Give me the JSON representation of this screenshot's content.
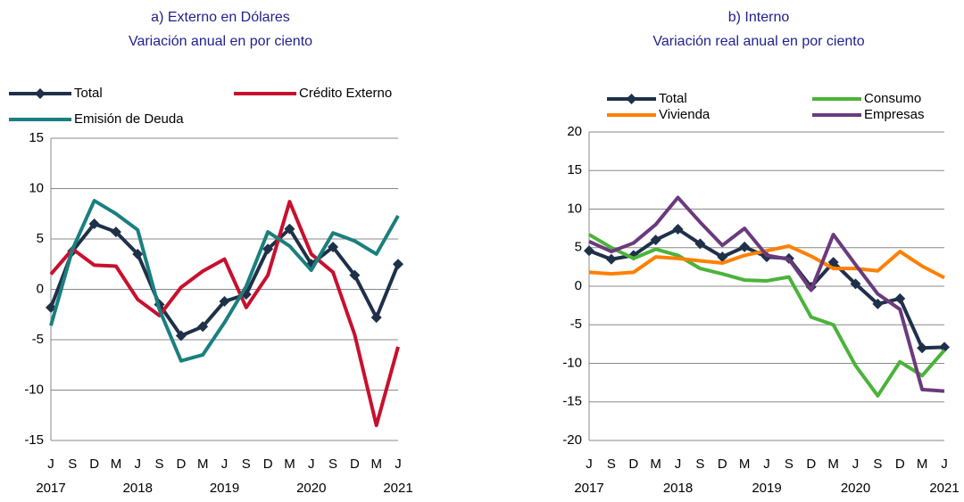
{
  "chart_data": [
    {
      "type": "line",
      "title": "a) Externo en Dólares",
      "subtitle": "Variación anual en por ciento",
      "categories": [
        "J",
        "S",
        "D",
        "M",
        "J",
        "S",
        "D",
        "M",
        "J",
        "S",
        "D",
        "M",
        "J",
        "S",
        "D",
        "M",
        "J"
      ],
      "years": [
        "2017",
        null,
        null,
        null,
        "2018",
        null,
        null,
        null,
        "2019",
        null,
        null,
        null,
        "2020",
        null,
        null,
        null,
        "2021"
      ],
      "ylim": [
        -15,
        15
      ],
      "yticks": [
        -15,
        -10,
        -5,
        0,
        5,
        10,
        15
      ],
      "grid": true,
      "series": [
        {
          "name": "Total",
          "color": "#1f3049",
          "marker": "diamond",
          "values": [
            -1.8,
            3.8,
            6.5,
            5.7,
            3.5,
            -1.5,
            -4.6,
            -3.7,
            -1.2,
            -0.5,
            4.0,
            6.0,
            2.5,
            4.2,
            1.4,
            -2.8,
            2.5
          ]
        },
        {
          "name": "Crédito Externo",
          "color": "#c8102e",
          "values": [
            1.5,
            4.0,
            2.4,
            2.3,
            -1.0,
            -2.6,
            0.2,
            1.8,
            3.0,
            -1.8,
            1.4,
            8.7,
            3.5,
            1.7,
            -4.5,
            -13.5,
            -5.7
          ]
        },
        {
          "name": "Emisión de Deuda",
          "color": "#1a7f7f",
          "values": [
            -3.6,
            4.0,
            8.8,
            7.5,
            5.9,
            -2.0,
            -7.1,
            -6.5,
            -3.3,
            0.3,
            5.7,
            4.3,
            1.9,
            5.6,
            4.8,
            3.5,
            7.3
          ]
        }
      ]
    },
    {
      "type": "line",
      "title": "b) Interno",
      "subtitle": "Variación real anual en por ciento",
      "categories": [
        "J",
        "S",
        "D",
        "M",
        "J",
        "S",
        "D",
        "M",
        "J",
        "S",
        "D",
        "M",
        "J",
        "S",
        "D",
        "M",
        "J"
      ],
      "years": [
        "2017",
        null,
        null,
        null,
        "2018",
        null,
        null,
        null,
        "2019",
        null,
        null,
        null,
        "2020",
        null,
        null,
        null,
        "2021"
      ],
      "ylim": [
        -20,
        20
      ],
      "yticks": [
        -20,
        -15,
        -10,
        -5,
        0,
        5,
        10,
        15,
        20
      ],
      "grid": true,
      "series": [
        {
          "name": "Total",
          "color": "#1f3049",
          "marker": "diamond",
          "values": [
            4.6,
            3.5,
            4.0,
            6.0,
            7.4,
            5.5,
            3.8,
            5.1,
            3.8,
            3.6,
            -0.1,
            3.1,
            0.3,
            -2.3,
            -1.6,
            -8.0,
            -7.9
          ]
        },
        {
          "name": "Consumo",
          "color": "#4bb33a",
          "values": [
            6.7,
            5.0,
            3.6,
            4.8,
            4.0,
            2.3,
            1.6,
            0.8,
            0.7,
            1.2,
            -4.0,
            -5.0,
            -10.3,
            -14.2,
            -9.8,
            -11.6,
            -8.3
          ]
        },
        {
          "name": "Vivienda",
          "color": "#ff8000",
          "values": [
            1.8,
            1.6,
            1.8,
            3.8,
            3.6,
            3.3,
            3.0,
            4.0,
            4.6,
            5.2,
            3.9,
            2.3,
            2.3,
            2.0,
            4.5,
            2.6,
            1.1
          ]
        },
        {
          "name": "Empresas",
          "color": "#6b3a7d",
          "values": [
            5.8,
            4.5,
            5.6,
            8.0,
            11.5,
            8.3,
            5.3,
            7.5,
            4.0,
            3.5,
            -0.5,
            6.7,
            2.8,
            -1.0,
            -3.0,
            -13.4,
            -13.6
          ]
        }
      ]
    }
  ]
}
